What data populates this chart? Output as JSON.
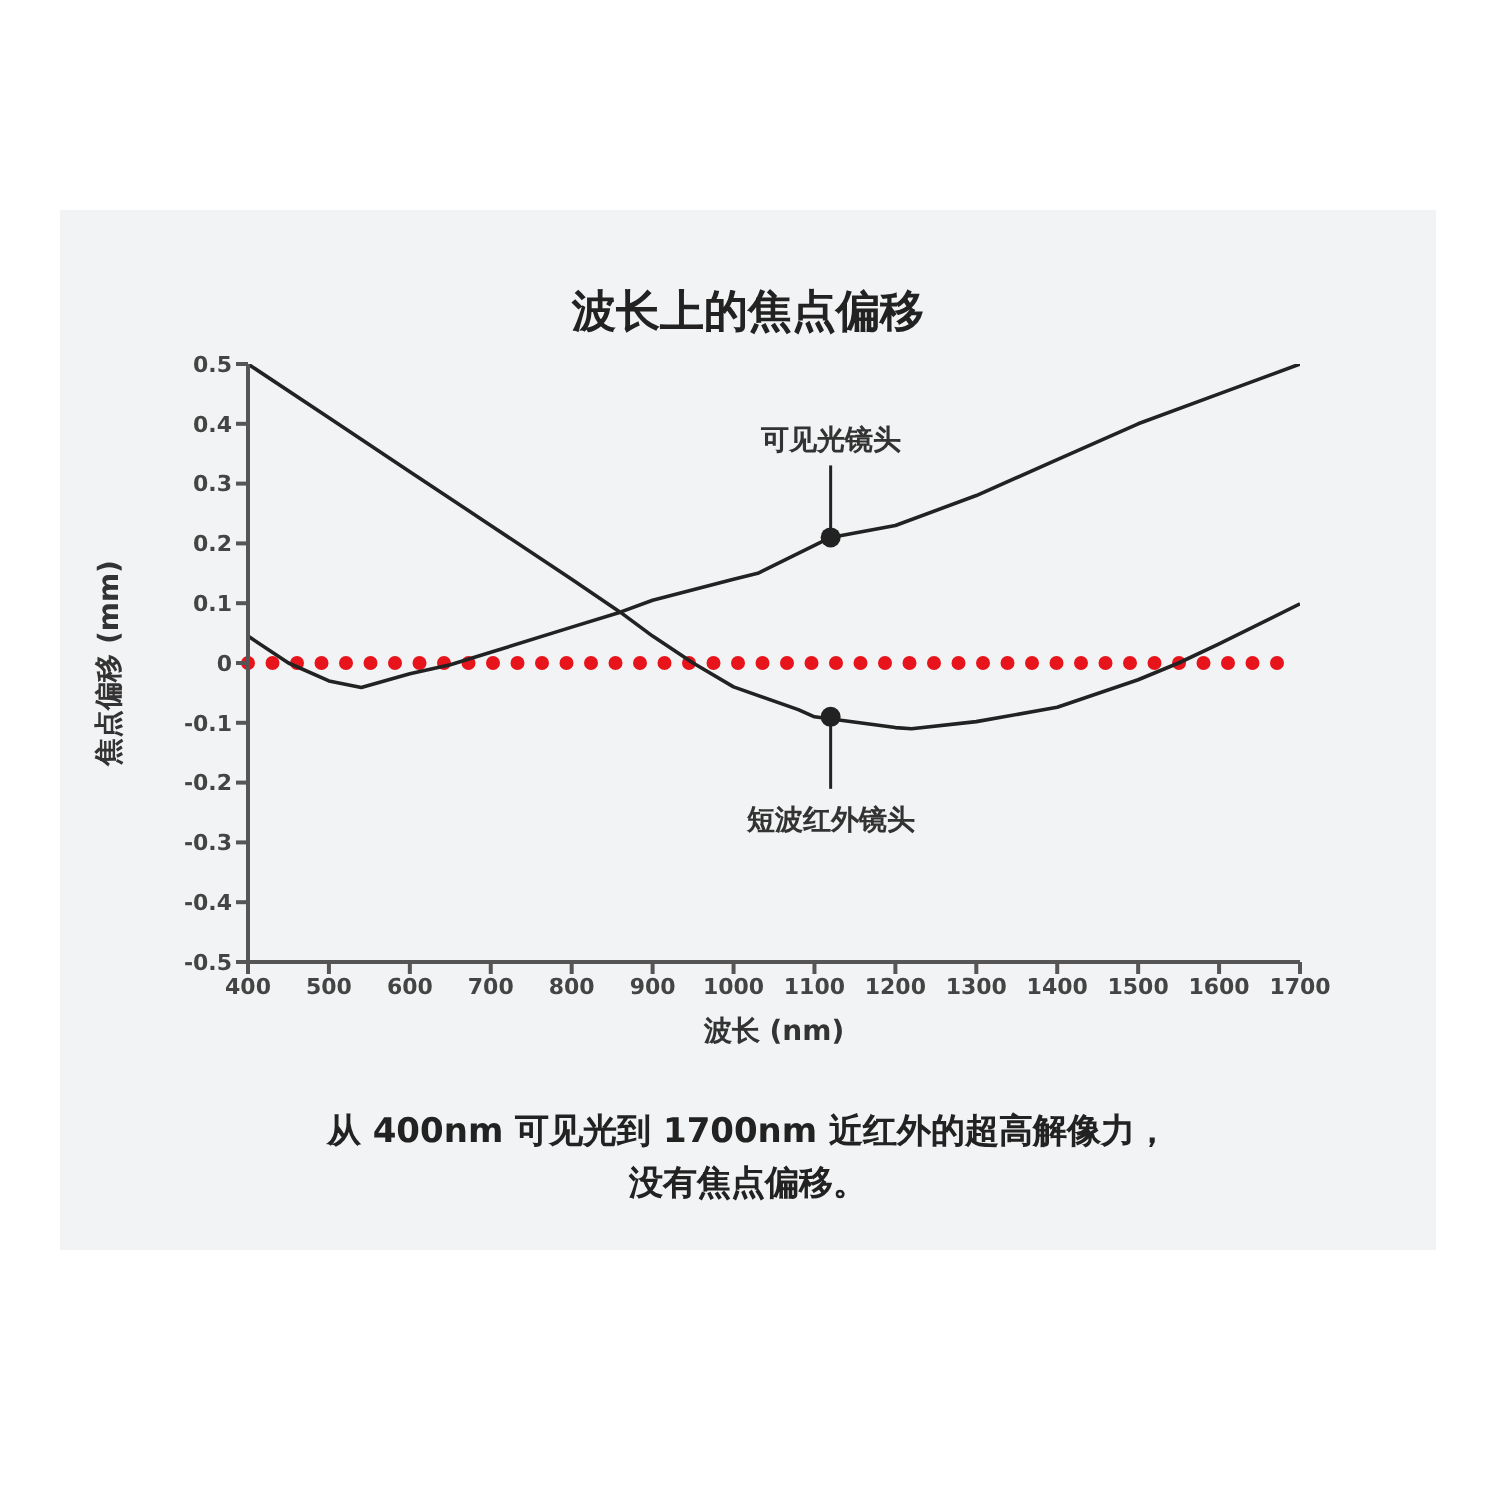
{
  "chart_data": {
    "type": "line",
    "title": "波长上的焦点偏移",
    "xlabel": "波长 (nm)",
    "ylabel": "焦点偏移 (mm)",
    "xlim": [
      400,
      1700
    ],
    "xticks": [
      400,
      500,
      600,
      700,
      800,
      900,
      1000,
      1100,
      1200,
      1300,
      1400,
      1500,
      1600,
      1700
    ],
    "ylim": [
      -0.5,
      0.5
    ],
    "yticks": [
      -0.5,
      -0.4,
      -0.3,
      -0.2,
      -0.1,
      0,
      0.1,
      0.2,
      0.3,
      0.4,
      0.5
    ],
    "grid": false,
    "marker": "none",
    "line_style": "solid",
    "series": [
      {
        "color": "#222222",
        "x": [
          400,
          450,
          500,
          540,
          600,
          650,
          700,
          800,
          860,
          900,
          1000,
          1030,
          1120,
          1200,
          1300,
          1400,
          1500,
          1600,
          1700
        ],
        "values": [
          0.045,
          0.0,
          -0.03,
          -0.041,
          -0.018,
          -0.003,
          0.018,
          0.06,
          0.085,
          0.105,
          0.14,
          0.15,
          0.21,
          0.23,
          0.28,
          0.34,
          0.4,
          0.45,
          0.5
        ]
      },
      {
        "color": "#222222",
        "x": [
          400,
          500,
          600,
          700,
          800,
          860,
          900,
          950,
          1000,
          1080,
          1100,
          1200,
          1220,
          1300,
          1400,
          1500,
          1550,
          1600,
          1700
        ],
        "values": [
          0.5,
          0.41,
          0.32,
          0.23,
          0.14,
          0.085,
          0.045,
          0.0,
          -0.04,
          -0.078,
          -0.09,
          -0.108,
          -0.11,
          -0.098,
          -0.074,
          -0.028,
          0.0,
          0.032,
          0.099
        ]
      }
    ],
    "ref_lines": [
      {
        "axis": "y",
        "value": 0,
        "color": "#e8141c",
        "line_style": "dotted"
      }
    ],
    "annotations": [
      {
        "text": "可见光镜头",
        "x": 1120,
        "y": 0.21
      },
      {
        "text": "短波红外镜头",
        "x": 1120,
        "y": -0.09
      },
      "从 400nm 可见光到 1700nm 近红外的超高解像力，",
      "没有焦点偏移。"
    ]
  }
}
